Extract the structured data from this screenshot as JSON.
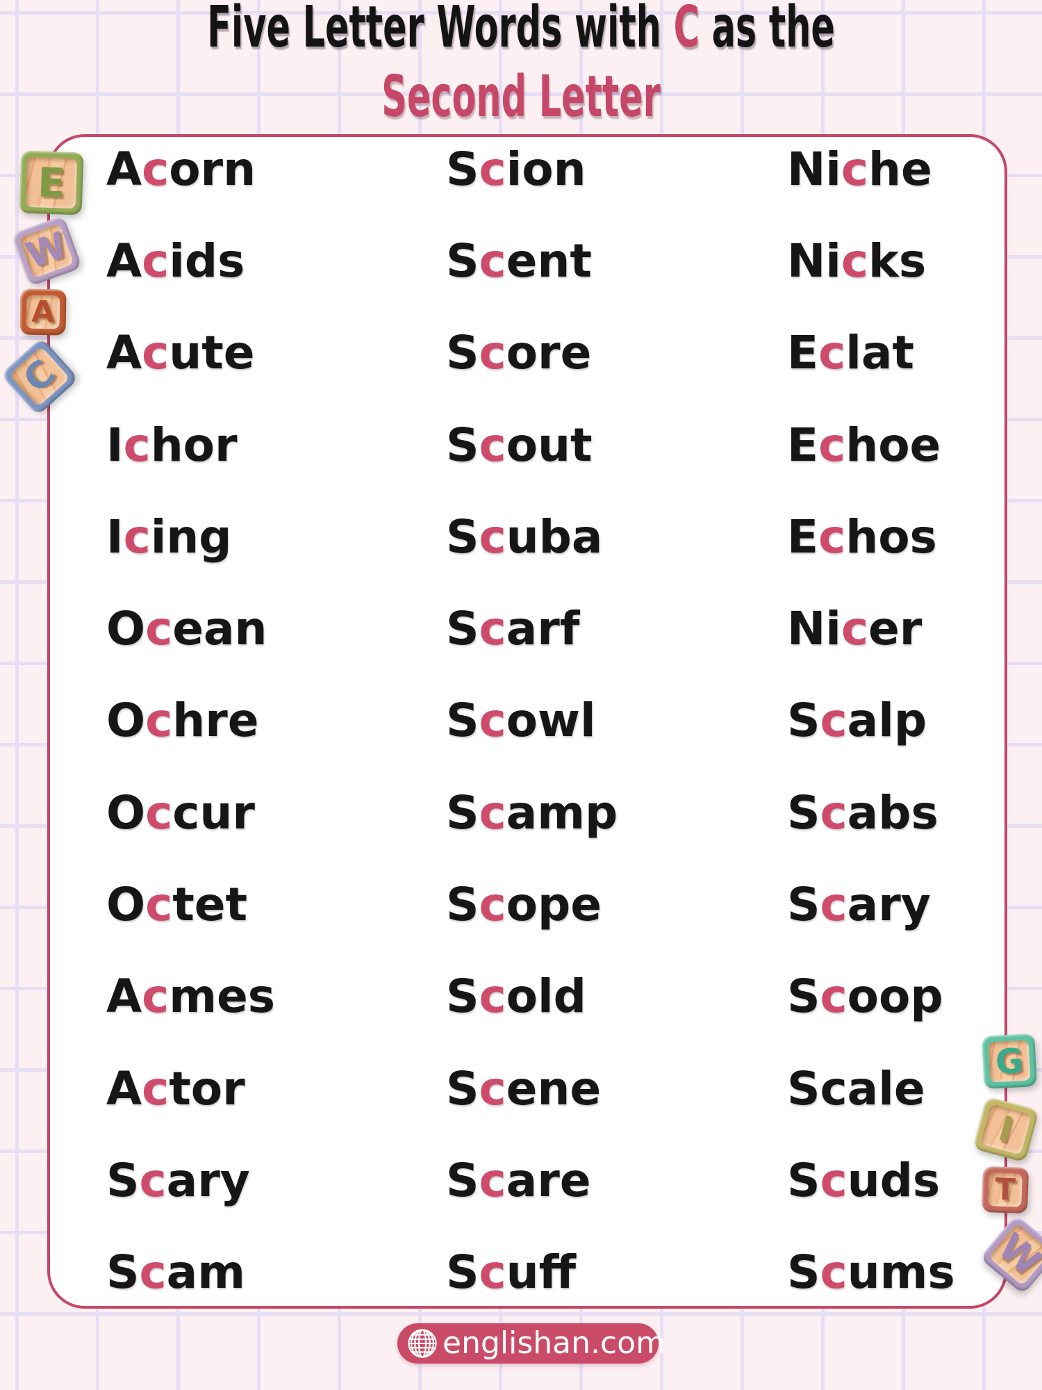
{
  "title": {
    "line1_pre": "Five Letter Words with ",
    "line1_highlight": "C",
    "line1_post": " as the",
    "line2": "Second Letter"
  },
  "word_grid": {
    "columns": [
      [
        {
          "pre": "A",
          "c": "c",
          "post": "orn"
        },
        {
          "pre": "A",
          "c": "c",
          "post": "ids"
        },
        {
          "pre": "A",
          "c": "c",
          "post": "ute"
        },
        {
          "pre": "I",
          "c": "c",
          "post": "hor"
        },
        {
          "pre": "I",
          "c": "c",
          "post": "ing"
        },
        {
          "pre": "O",
          "c": "c",
          "post": "ean"
        },
        {
          "pre": "O",
          "c": "c",
          "post": "hre"
        },
        {
          "pre": "O",
          "c": "c",
          "post": "cur"
        },
        {
          "pre": "O",
          "c": "c",
          "post": "tet"
        },
        {
          "pre": "A",
          "c": "c",
          "post": "mes"
        },
        {
          "pre": "A",
          "c": "c",
          "post": "tor"
        },
        {
          "pre": "S",
          "c": "c",
          "post": "ary"
        },
        {
          "pre": "S",
          "c": "c",
          "post": "am"
        }
      ],
      [
        {
          "pre": "S",
          "c": "c",
          "post": "ion"
        },
        {
          "pre": "S",
          "c": "c",
          "post": "ent"
        },
        {
          "pre": "S",
          "c": "c",
          "post": "ore"
        },
        {
          "pre": "S",
          "c": "c",
          "post": "out"
        },
        {
          "pre": "S",
          "c": "c",
          "post": "uba"
        },
        {
          "pre": "S",
          "c": "c",
          "post": "arf"
        },
        {
          "pre": "S",
          "c": "c",
          "post": "owl"
        },
        {
          "pre": "S",
          "c": "c",
          "post": "amp"
        },
        {
          "pre": "S",
          "c": "c",
          "post": "ope"
        },
        {
          "pre": "S",
          "c": "c",
          "post": "old"
        },
        {
          "pre": "S",
          "c": "c",
          "post": "ene"
        },
        {
          "pre": "S",
          "c": "c",
          "post": "are"
        },
        {
          "pre": "S",
          "c": "c",
          "post": "uff"
        }
      ],
      [
        {
          "pre": "Ni",
          "c": "c",
          "post": "he"
        },
        {
          "pre": "Ni",
          "c": "c",
          "post": "ks"
        },
        {
          "pre": "E",
          "c": "c",
          "post": "lat"
        },
        {
          "pre": "E",
          "c": "c",
          "post": "hoe"
        },
        {
          "pre": "E",
          "c": "c",
          "post": "hos"
        },
        {
          "pre": "Ni",
          "c": "c",
          "post": "er"
        },
        {
          "pre": "S",
          "c": "c",
          "post": "alp"
        },
        {
          "pre": "S",
          "c": "c",
          "post": "abs"
        },
        {
          "pre": "S",
          "c": "c",
          "post": "ary"
        },
        {
          "pre": "S",
          "c": "c",
          "post": "oop"
        },
        {
          "pre": "Scale",
          "c": "",
          "post": ""
        },
        {
          "pre": "S",
          "c": "c",
          "post": "uds"
        },
        {
          "pre": "S",
          "c": "c",
          "post": "ums"
        }
      ]
    ]
  },
  "decor_blocks": {
    "left": [
      {
        "letter": "E",
        "frame_color": "#93ab56",
        "letter_color": "#7f9a45"
      },
      {
        "letter": "W",
        "frame_color": "#b8a0c6",
        "letter_color": "#a489b8"
      },
      {
        "letter": "A",
        "frame_color": "#c15c33",
        "letter_color": "#b54f2b"
      },
      {
        "letter": "C",
        "frame_color": "#7c94c0",
        "letter_color": "#6d87b4"
      }
    ],
    "right": [
      {
        "letter": "G",
        "frame_color": "#5ec2a2",
        "letter_color": "#38ab8d"
      },
      {
        "letter": "I",
        "frame_color": "#c2b766",
        "letter_color": "#a89d4f"
      },
      {
        "letter": "T",
        "frame_color": "#c4685c",
        "letter_color": "#b2503f"
      },
      {
        "letter": "W",
        "frame_color": "#b29ac4",
        "letter_color": "#9f85b5"
      }
    ]
  },
  "footer": {
    "site": "englishan.com",
    "icon": "globe-icon"
  },
  "colors": {
    "accent_red": "#c64767",
    "word_highlight_red": "#cf4b6b",
    "word_text_black": "#161616",
    "card_background": "#ffffff",
    "card_border": "#c64767",
    "page_background": "#fcf0f2",
    "grid_line": "#e7ddf4",
    "badge_background": "#ca4b68",
    "wood_color": "#f0bd92"
  }
}
